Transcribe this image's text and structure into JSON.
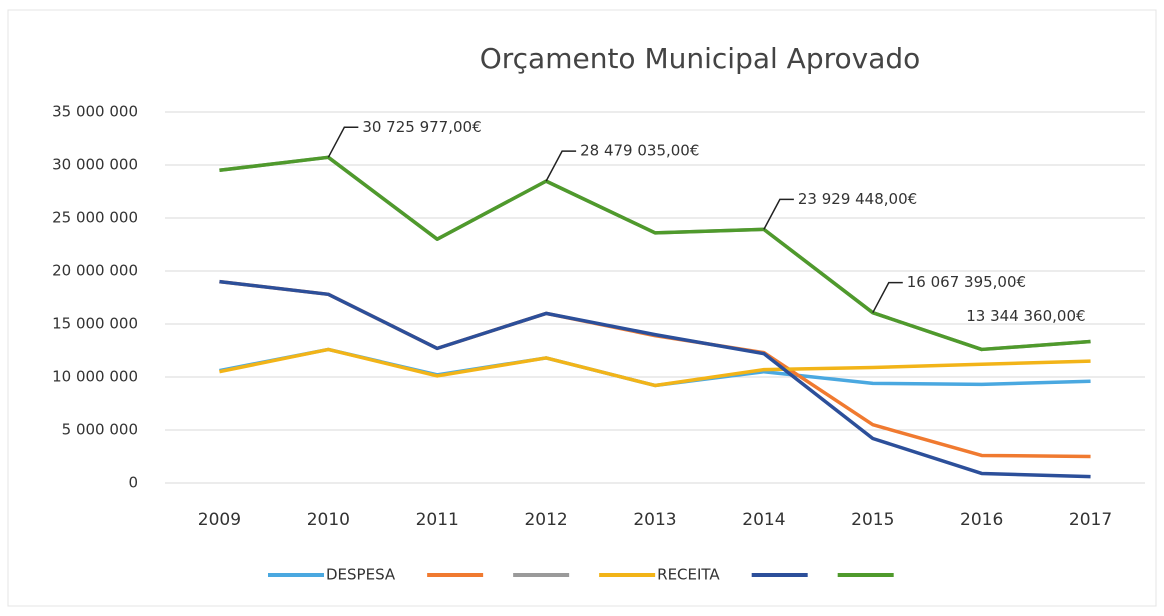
{
  "chart_data": {
    "type": "line",
    "title": "Orçamento Municipal Aprovado",
    "categories": [
      "2009",
      "2010",
      "2011",
      "2012",
      "2013",
      "2014",
      "2015",
      "2016",
      "2017"
    ],
    "ylim": [
      0,
      35000000
    ],
    "yticks": [
      0,
      {
        "value": 5000000,
        "label": "5 000 000"
      },
      {
        "value": 10000000,
        "label": "10 000 000"
      },
      {
        "value": 15000000,
        "label": "15 000 000"
      },
      {
        "value": 20000000,
        "label": "20 000 000"
      },
      {
        "value": 25000000,
        "label": "25 000 000"
      },
      {
        "value": 30000000,
        "label": "30 000 000"
      },
      {
        "value": 35000000,
        "label": "35 000 000"
      }
    ],
    "grid": true,
    "series": [
      {
        "name": "DESPESA",
        "color": "#4aa8e0",
        "values": [
          10600000,
          12600000,
          10200000,
          11800000,
          9200000,
          10500000,
          9400000,
          9300000,
          9600000
        ]
      },
      {
        "color": "#f07a30",
        "values": [
          19000000,
          17800000,
          12700000,
          16000000,
          13900000,
          12300000,
          5500000,
          2600000,
          2500000
        ]
      },
      {
        "color": "#9a9a9a",
        "values": [
          29500000,
          30725977,
          23000000,
          28479035,
          23600000,
          23929448,
          16067395,
          12600000,
          13344360
        ]
      },
      {
        "name": "RECEITA",
        "color": "#f2b418",
        "values": [
          10500000,
          12600000,
          10100000,
          11800000,
          9200000,
          10700000,
          10900000,
          11200000,
          11500000
        ]
      },
      {
        "color": "#2c4f9a",
        "values": [
          19000000,
          17800000,
          12700000,
          16000000,
          14000000,
          12200000,
          4200000,
          900000,
          600000
        ]
      },
      {
        "color": "#4f9a2c",
        "values": [
          29500000,
          30725977,
          23000000,
          28479035,
          23600000,
          23929448,
          16067395,
          12600000,
          13344360
        ],
        "value_labels": [
          null,
          "30 725 977,00€",
          null,
          "28 479 035,00€",
          null,
          "23 929 448,00€",
          "16 067 395,00€",
          null,
          "13 344 360,00€"
        ]
      }
    ]
  }
}
